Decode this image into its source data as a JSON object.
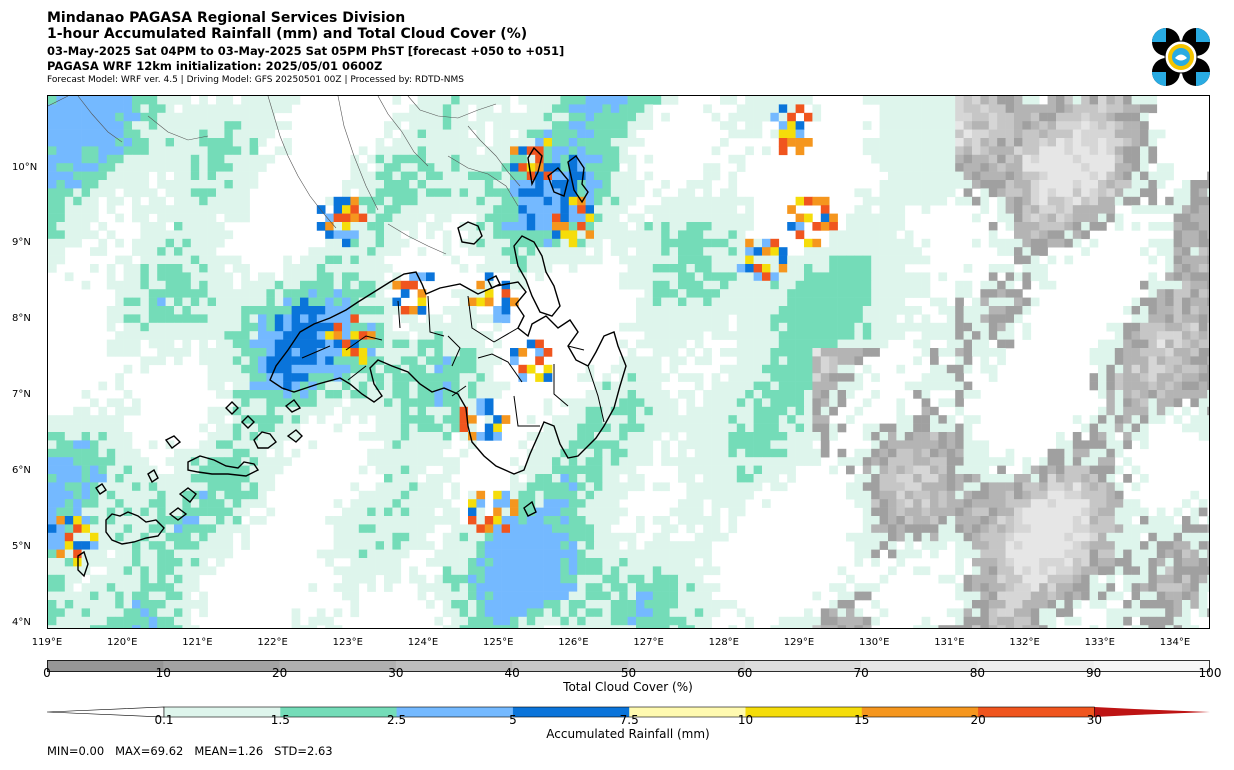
{
  "header": {
    "title1": "Mindanao PAGASA Regional Services Division",
    "title2": "1-hour Accumulated Rainfall (mm) and Total Cloud Cover (%)",
    "title3": "03-May-2025 Sat 04PM to 03-May-2025 Sat 05PM PhST [forecast +050 to +051]",
    "title4": "PAGASA WRF 12km initialization: 2025/05/01 0600Z",
    "title5": "Forecast Model: WRF ver. 4.5 | Driving Model: GFS 20250501 00Z | Processed by: RDTD-NMS"
  },
  "logo": {
    "icon": "pagasa-logo-icon",
    "colors": [
      "#000000",
      "#29abe2",
      "#f5c400"
    ]
  },
  "map": {
    "lat_labels": [
      "10°N",
      "9°N",
      "8°N",
      "7°N",
      "6°N",
      "5°N",
      "4°N"
    ],
    "lon_labels": [
      "119°E",
      "120°E",
      "121°E",
      "122°E",
      "123°E",
      "124°E",
      "125°E",
      "126°E",
      "127°E",
      "128°E",
      "129°E",
      "130°E",
      "131°E",
      "132°E",
      "133°E",
      "134°E"
    ]
  },
  "cloud_colorbar": {
    "label": "Total Cloud Cover (%)",
    "ticks": [
      "0",
      "10",
      "20",
      "30",
      "40",
      "50",
      "60",
      "70",
      "80",
      "90",
      "100"
    ],
    "colors": [
      "#969696",
      "#a3a3a3",
      "#b0b0b0",
      "#bdbdbd",
      "#c8c8c8",
      "#d3d3d3",
      "#dddddd",
      "#e6e6e6",
      "#eeeeee",
      "#f6f6f6"
    ]
  },
  "rain_colorbar": {
    "label": "Accumulated Rainfall (mm)",
    "ticks": [
      "0.1",
      "1.5",
      "2.5",
      "5",
      "7.5",
      "10",
      "15",
      "20",
      "30"
    ],
    "colors": [
      "#def5ec",
      "#74dcb8",
      "#74b9ff",
      "#0a74da",
      "#fffab0",
      "#f5dd0a",
      "#f5961e",
      "#f0551e",
      "#be1414"
    ]
  },
  "stats": {
    "text": "MIN=0.00   MAX=69.62   MEAN=1.26   STD=2.63"
  }
}
